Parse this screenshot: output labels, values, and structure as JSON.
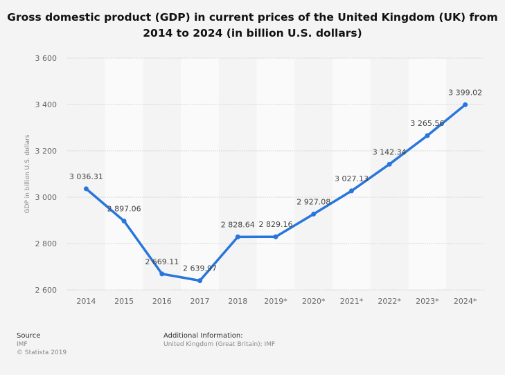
{
  "chart_data": {
    "type": "line",
    "title": "Gross domestic product (GDP) in current prices of the United Kingdom (UK) from 2014 to 2024 (in billion U.S. dollars)",
    "xlabel": "",
    "ylabel": "GDP in billion U.S. dollars",
    "categories": [
      "2014",
      "2015",
      "2016",
      "2017",
      "2018",
      "2019*",
      "2020*",
      "2021*",
      "2022*",
      "2023*",
      "2024*"
    ],
    "values": [
      3036.31,
      2897.06,
      2669.11,
      2639.97,
      2828.64,
      2829.16,
      2927.08,
      3027.13,
      3142.34,
      3265.56,
      3399.02
    ],
    "data_labels": [
      "3 036.31",
      "2 897.06",
      "2 669.11",
      "2 639.97",
      "2 828.64",
      "2 829.16",
      "2 927.08",
      "3 027.13",
      "3 142.34",
      "3 265.56",
      "3 399.02"
    ],
    "ylim": [
      2600,
      3600
    ],
    "yticks": [
      2600,
      2800,
      3000,
      3200,
      3400,
      3600
    ],
    "ytick_labels": [
      "2 600",
      "2 800",
      "3 000",
      "3 200",
      "3 400",
      "3 600"
    ],
    "grid": true,
    "line_color": "#2876dd"
  },
  "footer": {
    "source_heading": "Source",
    "source": "IMF",
    "copyright": "© Statista 2019",
    "info_heading": "Additional Information:",
    "info": "United Kingdom (Great Britain); IMF"
  }
}
